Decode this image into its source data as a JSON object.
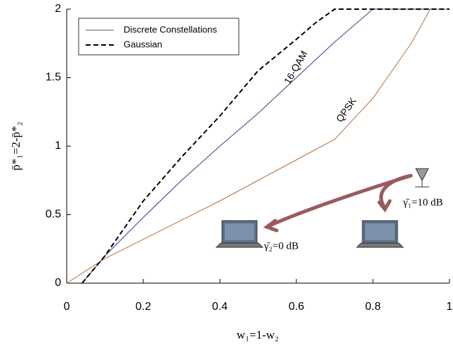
{
  "chart_data": {
    "type": "line",
    "xlabel": "w₁=1-w₂",
    "ylabel": "p̄*₁=2-p̄*₂",
    "xlim": [
      0,
      1
    ],
    "ylim": [
      0,
      2
    ],
    "xticks": [
      0,
      0.2,
      0.4,
      0.6,
      0.8,
      1
    ],
    "yticks": [
      0,
      0.5,
      1,
      1.5,
      2
    ],
    "legend_title": "Discrete Constellations",
    "legend_color": "#555555",
    "series": [
      {
        "name": "16-QAM",
        "color": "#3a3a8c",
        "dash": false,
        "x": [
          0.04,
          0.1,
          0.2,
          0.3,
          0.4,
          0.5,
          0.6,
          0.7,
          0.8,
          1
        ],
        "values": [
          0,
          0.2,
          0.48,
          0.75,
          1.0,
          1.24,
          1.5,
          1.76,
          2,
          2
        ]
      },
      {
        "name": "QPSK",
        "color": "#b3703f",
        "dash": false,
        "x": [
          0,
          0.1,
          0.2,
          0.3,
          0.4,
          0.5,
          0.6,
          0.7,
          0.8,
          0.9,
          0.95,
          1
        ],
        "values": [
          0,
          0.18,
          0.32,
          0.46,
          0.6,
          0.75,
          0.9,
          1.05,
          1.35,
          1.75,
          2,
          2
        ]
      },
      {
        "name": "Gaussian",
        "color": "#000000",
        "dash": true,
        "x": [
          0.04,
          0.1,
          0.2,
          0.3,
          0.4,
          0.5,
          0.6,
          0.65,
          0.7,
          1
        ],
        "values": [
          0,
          0.2,
          0.6,
          0.92,
          1.22,
          1.55,
          1.78,
          1.9,
          2,
          2
        ]
      }
    ],
    "annotations": {
      "gamma1": "γ̄₁=10 dB",
      "gamma2": "γ̄₂=0 dB"
    }
  }
}
